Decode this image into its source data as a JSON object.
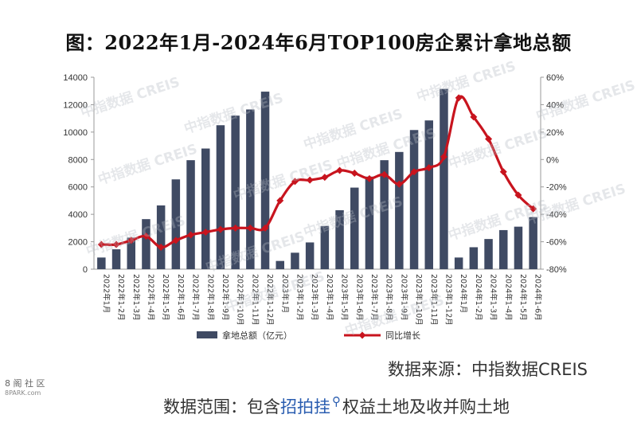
{
  "title": "图：2022年1月-2024年6月TOP100房企累计拿地总额",
  "source": "数据来源：中指数据CREIS",
  "scope": {
    "prefix": "数据范围：包含",
    "link": "招拍挂",
    "suffix": "权益土地及收并购土地"
  },
  "watermark": "中指数据 CREIS",
  "logo": {
    "line1": "8 阁 社 区",
    "line2": "8PARK.com"
  },
  "chart_data": {
    "type": "bar",
    "categories": [
      "2022年1月",
      "2022年1-2月",
      "2022年1-3月",
      "2022年1-4月",
      "2022年1-5月",
      "2022年1-6月",
      "2022年1-7月",
      "2022年1-8月",
      "2022年1-9月",
      "2022年1-10月",
      "2022年1-11月",
      "2022年1-12月",
      "2023年1月",
      "2023年1-2月",
      "2023年1-3月",
      "2023年1-4月",
      "2023年1-5月",
      "2023年1-6月",
      "2023年1-7月",
      "2023年1-8月",
      "2023年1-9月",
      "2023年1-10月",
      "2023年1-11月",
      "2023年1-12月",
      "2024年1月",
      "2024年1-2月",
      "2024年1-3月",
      "2024年1-4月",
      "2024年1-5月",
      "2024年1-6月"
    ],
    "series": [
      {
        "name": "拿地总额（亿元）",
        "type": "bar",
        "axis": "left",
        "color": "#3f4a63",
        "values": [
          850,
          1450,
          2300,
          3650,
          4650,
          6550,
          7950,
          8800,
          10500,
          11200,
          11650,
          12950,
          600,
          1200,
          1950,
          3150,
          4300,
          5950,
          6750,
          7950,
          8550,
          10150,
          10850,
          13150,
          850,
          1600,
          2200,
          2850,
          3100,
          3800
        ]
      },
      {
        "name": "同比增长",
        "type": "line",
        "axis": "right",
        "color": "#c8141e",
        "values": [
          -62,
          -62,
          -59,
          -56,
          -64,
          -59,
          -55,
          -53,
          -51,
          -50,
          -50,
          -50,
          -30,
          -16,
          -15,
          -13,
          -8,
          -10,
          -14,
          -11,
          -18,
          -9,
          -6,
          2,
          45,
          31,
          15,
          -9,
          -26,
          -36
        ]
      }
    ],
    "ylim": [
      0,
      14000
    ],
    "yticks": [
      0,
      2000,
      4000,
      6000,
      8000,
      10000,
      12000,
      14000
    ],
    "y2lim": [
      -80,
      60
    ],
    "y2ticks": [
      "-80%",
      "-60%",
      "-40%",
      "-20%",
      "0%",
      "20%",
      "40%",
      "60%"
    ],
    "legend": "bottom"
  }
}
